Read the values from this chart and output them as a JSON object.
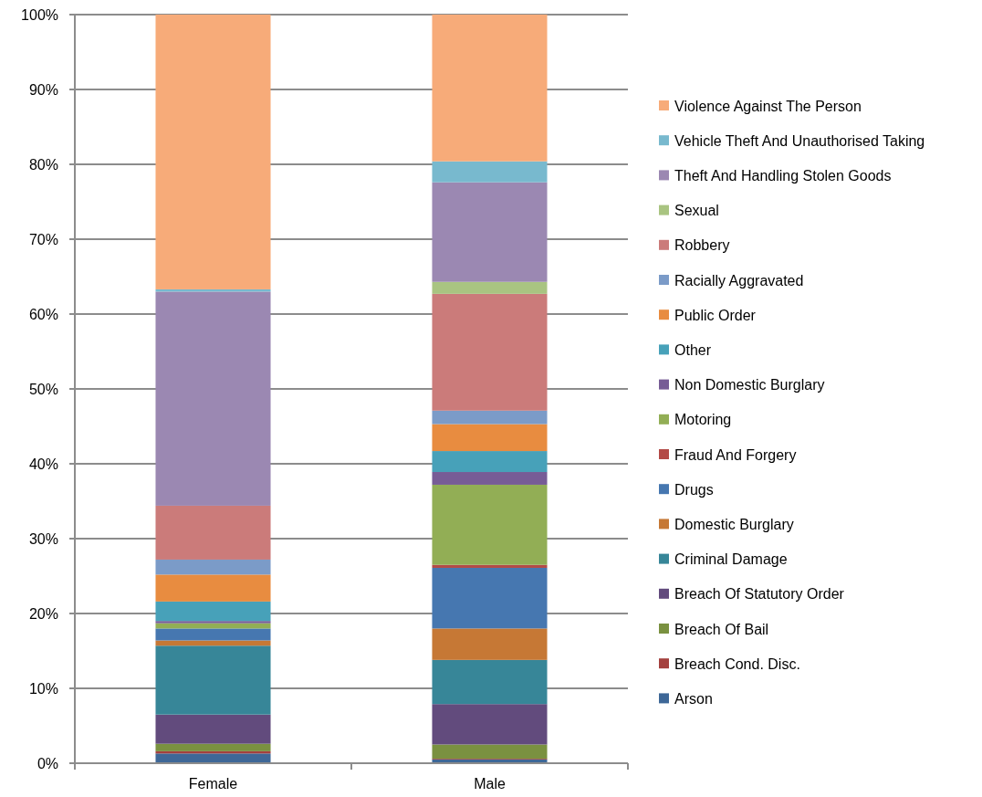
{
  "chart_data": {
    "type": "bar",
    "stacked": true,
    "categories": [
      "Female",
      "Male"
    ],
    "series": [
      {
        "name": "Arson",
        "color": "#3e6797",
        "values": [
          1.3,
          0.5
        ]
      },
      {
        "name": "Breach Cond. Disc.",
        "color": "#a4403e",
        "values": [
          0.3,
          0.1
        ]
      },
      {
        "name": "Breach Of Bail",
        "color": "#7a9140",
        "values": [
          1.0,
          1.9
        ]
      },
      {
        "name": "Breach Of Statutory Order",
        "color": "#624b7d",
        "values": [
          3.9,
          5.4
        ]
      },
      {
        "name": "Criminal Damage",
        "color": "#378698",
        "values": [
          9.2,
          5.9
        ]
      },
      {
        "name": "Domestic Burglary",
        "color": "#c67835",
        "values": [
          0.7,
          4.2
        ]
      },
      {
        "name": "Drugs",
        "color": "#4677b0",
        "values": [
          1.6,
          8.1
        ]
      },
      {
        "name": "Fraud And Forgery",
        "color": "#b34a47",
        "values": [
          0,
          0.4
        ]
      },
      {
        "name": "Motoring",
        "color": "#92ae55",
        "values": [
          0.7,
          10.7
        ]
      },
      {
        "name": "Non Domestic Burglary",
        "color": "#775c96",
        "values": [
          0.3,
          1.7
        ]
      },
      {
        "name": "Other",
        "color": "#47a1b9",
        "values": [
          2.6,
          2.8
        ]
      },
      {
        "name": "Public Order",
        "color": "#e88c40",
        "values": [
          3.6,
          3.6
        ]
      },
      {
        "name": "Racially Aggravated",
        "color": "#7b9bc8",
        "values": [
          2.0,
          1.8
        ]
      },
      {
        "name": "Robbery",
        "color": "#cb7b7a",
        "values": [
          7.2,
          15.6
        ]
      },
      {
        "name": "Sexual",
        "color": "#a9c481",
        "values": [
          0,
          1.6
        ]
      },
      {
        "name": "Theft And Handling Stolen Goods",
        "color": "#9b88b2",
        "values": [
          28.6,
          13.3
        ]
      },
      {
        "name": "Vehicle Theft And Unauthorised Taking",
        "color": "#78b9ce",
        "values": [
          0.3,
          2.8
        ]
      },
      {
        "name": "Violence Against The Person",
        "color": "#f7ab79",
        "values": [
          36.7,
          19.6
        ]
      }
    ],
    "ylim": [
      0,
      100
    ],
    "yticks": [
      {
        "value": 0,
        "label": "0%"
      },
      {
        "value": 10,
        "label": "10%"
      },
      {
        "value": 20,
        "label": "20%"
      },
      {
        "value": 30,
        "label": "30%"
      },
      {
        "value": 40,
        "label": "40%"
      },
      {
        "value": 50,
        "label": "50%"
      },
      {
        "value": 60,
        "label": "60%"
      },
      {
        "value": 70,
        "label": "70%"
      },
      {
        "value": 80,
        "label": "80%"
      },
      {
        "value": 90,
        "label": "90%"
      },
      {
        "value": 100,
        "label": "100%"
      }
    ],
    "grid": "y",
    "legend": "right"
  }
}
